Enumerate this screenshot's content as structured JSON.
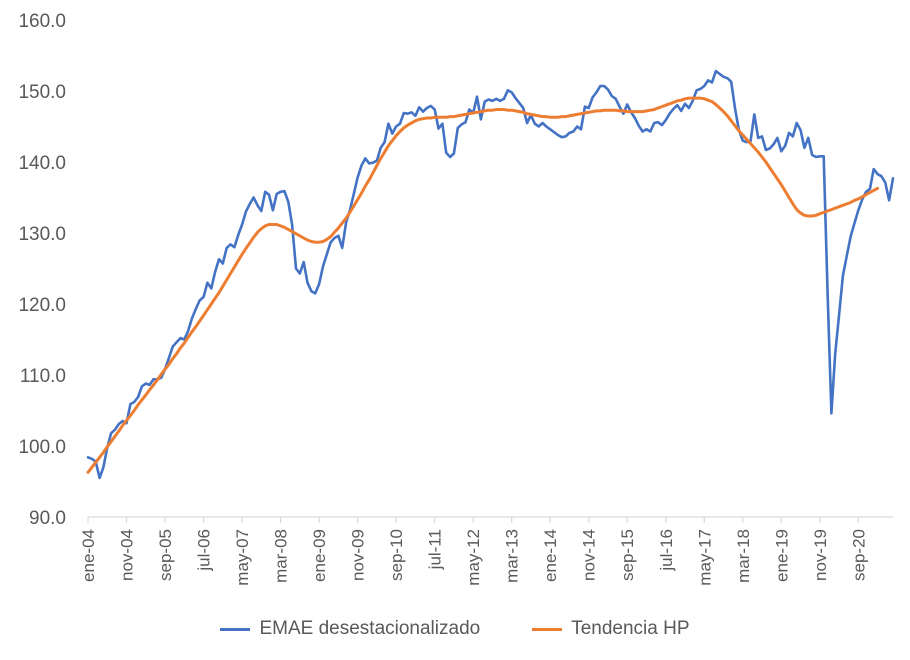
{
  "chart_data": {
    "type": "line",
    "title": "",
    "xlabel": "",
    "ylabel": "",
    "ylim": [
      90,
      160
    ],
    "y_ticks": [
      "90.0",
      "100.0",
      "110.0",
      "120.0",
      "130.0",
      "140.0",
      "150.0",
      "160.0"
    ],
    "x_ticks": [
      "ene-04",
      "nov-04",
      "sep-05",
      "jul-06",
      "may-07",
      "mar-08",
      "ene-09",
      "nov-09",
      "sep-10",
      "jul-11",
      "may-12",
      "mar-13",
      "ene-14",
      "nov-14",
      "sep-15",
      "jul-16",
      "may-17",
      "mar-18",
      "ene-19",
      "nov-19",
      "sep-20"
    ],
    "x_start": "ene-04",
    "x_end": "dic-21",
    "grid": false,
    "legend": "bottom",
    "series": [
      {
        "name": "EMAE desestacionalizado",
        "color": "#4472C4",
        "values": [
          98.4,
          98.2,
          97.8,
          95.5,
          97.0,
          99.8,
          101.8,
          102.3,
          103.1,
          103.5,
          103.2,
          105.9,
          106.2,
          106.9,
          108.4,
          108.8,
          108.6,
          109.4,
          109.4,
          109.6,
          110.8,
          112.4,
          114.0,
          114.6,
          115.2,
          115.0,
          116.2,
          118.0,
          119.3,
          120.5,
          121.0,
          123.0,
          122.2,
          124.5,
          126.3,
          125.7,
          127.9,
          128.4,
          128.0,
          129.7,
          131.2,
          133.0,
          134.1,
          135.0,
          133.9,
          133.1,
          135.8,
          135.4,
          133.2,
          135.5,
          135.8,
          135.9,
          134.4,
          131.2,
          125.0,
          124.3,
          125.9,
          123.0,
          121.8,
          121.5,
          122.8,
          125.3,
          127.0,
          128.7,
          129.3,
          129.6,
          127.9,
          131.5,
          133.2,
          135.5,
          137.8,
          139.5,
          140.5,
          139.8,
          139.9,
          140.2,
          142.0,
          142.8,
          145.4,
          144.0,
          145.0,
          145.4,
          146.9,
          146.8,
          147.0,
          146.5,
          147.7,
          147.1,
          147.6,
          147.9,
          147.4,
          144.7,
          145.4,
          141.3,
          140.7,
          141.2,
          144.8,
          145.3,
          145.6,
          147.4,
          146.9,
          149.2,
          146.0,
          148.5,
          148.8,
          148.6,
          148.9,
          148.6,
          148.9,
          150.1,
          149.8,
          149.0,
          148.3,
          147.6,
          145.5,
          146.6,
          145.4,
          145.0,
          145.5,
          145.0,
          144.6,
          144.2,
          143.8,
          143.5,
          143.6,
          144.1,
          144.3,
          145.0,
          144.6,
          147.8,
          147.6,
          149.1,
          149.8,
          150.7,
          150.7,
          150.2,
          149.3,
          148.9,
          147.8,
          146.8,
          148.1,
          147.0,
          146.2,
          145.1,
          144.3,
          144.6,
          144.3,
          145.5,
          145.6,
          145.2,
          145.9,
          146.8,
          147.5,
          148.0,
          147.2,
          148.2,
          147.6,
          148.6,
          150.1,
          150.3,
          150.7,
          151.5,
          151.2,
          152.8,
          152.4,
          152.0,
          151.8,
          151.3,
          147.5,
          144.5,
          143.0,
          142.8,
          142.9,
          146.7,
          143.4,
          143.6,
          141.7,
          141.9,
          142.5,
          143.4,
          141.5,
          142.3,
          144.1,
          143.6,
          145.5,
          144.5,
          142.0,
          143.4,
          141.0,
          140.7,
          140.8,
          140.8,
          122.0,
          104.6,
          113.0,
          118.5,
          124.0,
          126.8,
          129.5,
          131.4,
          133.2,
          134.7,
          135.8,
          136.2,
          139.0,
          138.3,
          138.0,
          137.1,
          134.6,
          137.7
        ],
        "ylabel": ""
      },
      {
        "name": "Tendencia HP",
        "color": "#ED7D31",
        "values": [
          96.3,
          97.0,
          97.7,
          98.4,
          99.1,
          99.9,
          100.6,
          101.4,
          102.1,
          102.9,
          103.6,
          104.3,
          105.0,
          105.8,
          106.5,
          107.2,
          107.9,
          108.6,
          109.3,
          110.1,
          110.8,
          111.5,
          112.3,
          113.0,
          113.8,
          114.5,
          115.3,
          116.1,
          116.8,
          117.6,
          118.4,
          119.2,
          120.0,
          120.8,
          121.6,
          122.5,
          123.4,
          124.3,
          125.2,
          126.1,
          127.0,
          127.8,
          128.6,
          129.4,
          130.1,
          130.6,
          131.0,
          131.2,
          131.2,
          131.2,
          131.0,
          130.8,
          130.5,
          130.2,
          129.9,
          129.6,
          129.3,
          129.0,
          128.8,
          128.7,
          128.7,
          128.8,
          129.1,
          129.5,
          130.1,
          130.7,
          131.4,
          132.1,
          132.9,
          133.8,
          134.7,
          135.6,
          136.6,
          137.5,
          138.5,
          139.5,
          140.5,
          141.4,
          142.3,
          143.0,
          143.7,
          144.3,
          144.8,
          145.2,
          145.5,
          145.8,
          146.0,
          146.1,
          146.2,
          146.2,
          146.3,
          146.3,
          146.3,
          146.3,
          146.4,
          146.4,
          146.5,
          146.6,
          146.7,
          146.8,
          146.9,
          147.0,
          147.1,
          147.2,
          147.3,
          147.3,
          147.4,
          147.4,
          147.4,
          147.3,
          147.3,
          147.2,
          147.1,
          147.0,
          146.8,
          146.7,
          146.6,
          146.5,
          146.4,
          146.4,
          146.3,
          146.3,
          146.3,
          146.4,
          146.4,
          146.5,
          146.6,
          146.7,
          146.8,
          146.9,
          147.0,
          147.1,
          147.2,
          147.2,
          147.3,
          147.3,
          147.3,
          147.3,
          147.2,
          147.2,
          147.1,
          147.1,
          147.1,
          147.1,
          147.1,
          147.2,
          147.3,
          147.4,
          147.6,
          147.8,
          148.0,
          148.2,
          148.4,
          148.6,
          148.7,
          148.9,
          149.0,
          149.0,
          149.0,
          149.0,
          148.9,
          148.7,
          148.5,
          148.1,
          147.6,
          147.1,
          146.5,
          145.8,
          145.1,
          144.4,
          143.8,
          143.2,
          142.6,
          142.0,
          141.4,
          140.7,
          140.0,
          139.2,
          138.4,
          137.6,
          136.8,
          135.9,
          135.0,
          134.1,
          133.3,
          132.8,
          132.5,
          132.4,
          132.4,
          132.5,
          132.7,
          132.9,
          133.1,
          133.3,
          133.5,
          133.7,
          133.9,
          134.1,
          134.3,
          134.6,
          134.8,
          135.1,
          135.4,
          135.7,
          136.0,
          136.3
        ],
        "ylabel": ""
      }
    ]
  }
}
